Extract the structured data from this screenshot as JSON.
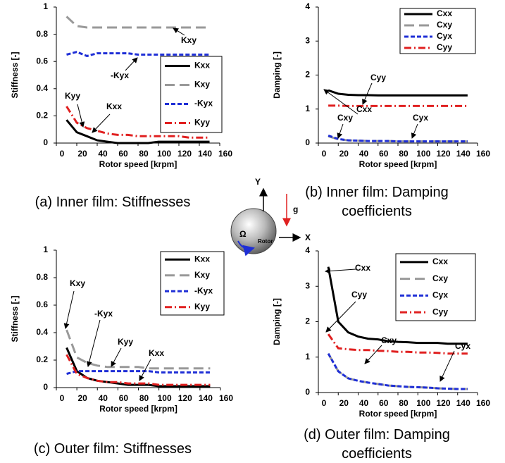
{
  "chart_data": [
    {
      "type": "line",
      "caption": "(a) Inner film: Stiffnesses",
      "xlabel": "Rotor speed [krpm]",
      "ylabel": "Stiffness [-]",
      "x": [
        10,
        20,
        30,
        40,
        50,
        60,
        70,
        80,
        90,
        100,
        110,
        120,
        130,
        140,
        150
      ],
      "xlim": [
        0,
        160
      ],
      "xticks": [
        0,
        20,
        40,
        60,
        80,
        100,
        120,
        140,
        160
      ],
      "ylim": [
        0,
        1
      ],
      "yticks": [
        0,
        0.2,
        0.4,
        0.6,
        0.8,
        1
      ],
      "legend": "upper right",
      "series": [
        {
          "name": "Kxx",
          "color": "#000000",
          "linestyle": "solid",
          "values": [
            0.17,
            0.08,
            0.05,
            0.02,
            0.01,
            0,
            0,
            0,
            0,
            0.01,
            0.01,
            0.01,
            0.01,
            0.01,
            0.01
          ]
        },
        {
          "name": "Kxy",
          "color": "#999999",
          "linestyle": "dashed",
          "values": [
            0.93,
            0.86,
            0.85,
            0.85,
            0.85,
            0.85,
            0.85,
            0.85,
            0.85,
            0.85,
            0.85,
            0.85,
            0.85,
            0.85,
            0.85
          ]
        },
        {
          "name": "-Kyx",
          "color": "#1f2fd6",
          "linestyle": "dotted",
          "values": [
            0.65,
            0.67,
            0.64,
            0.66,
            0.66,
            0.66,
            0.66,
            0.65,
            0.65,
            0.65,
            0.65,
            0.65,
            0.65,
            0.65,
            0.65
          ]
        },
        {
          "name": "Kyy",
          "color": "#e02020",
          "linestyle": "dashdot",
          "values": [
            0.27,
            0.15,
            0.11,
            0.09,
            0.07,
            0.06,
            0.06,
            0.05,
            0.05,
            0.05,
            0.05,
            0.05,
            0.04,
            0.04,
            0.04
          ]
        }
      ],
      "annotations": [
        "Kxy",
        "-Kyx",
        "Kyy",
        "Kxx"
      ]
    },
    {
      "type": "line",
      "caption": "(b) Inner film: Damping coefficients",
      "xlabel": "Rotor speed [krpm]",
      "ylabel": "Damping [-]",
      "x": [
        10,
        20,
        30,
        40,
        50,
        60,
        70,
        80,
        90,
        100,
        110,
        120,
        130,
        140,
        150
      ],
      "xlim": [
        0,
        160
      ],
      "xticks": [
        0,
        20,
        40,
        60,
        80,
        100,
        120,
        140,
        160
      ],
      "ylim": [
        0,
        4
      ],
      "yticks": [
        0,
        1,
        2,
        3,
        4
      ],
      "legend": "upper right",
      "series": [
        {
          "name": "Cxx",
          "color": "#000000",
          "linestyle": "solid",
          "values": [
            1.55,
            1.45,
            1.42,
            1.41,
            1.41,
            1.4,
            1.4,
            1.4,
            1.4,
            1.4,
            1.4,
            1.4,
            1.4,
            1.4,
            1.4
          ]
        },
        {
          "name": "Cxy",
          "color": "#999999",
          "linestyle": "dashed",
          "values": [
            0.2,
            0.11,
            0.08,
            0.07,
            0.06,
            0.06,
            0.06,
            0.05,
            0.05,
            0.05,
            0.05,
            0.05,
            0.05,
            0.05,
            0.05
          ]
        },
        {
          "name": "Cyx",
          "color": "#1f2fd6",
          "linestyle": "dotted",
          "values": [
            0.22,
            0.12,
            0.08,
            0.07,
            0.06,
            0.06,
            0.06,
            0.05,
            0.05,
            0.05,
            0.05,
            0.05,
            0.05,
            0.05,
            0.05
          ]
        },
        {
          "name": "Cyy",
          "color": "#e02020",
          "linestyle": "dashdot",
          "values": [
            1.1,
            1.1,
            1.09,
            1.09,
            1.09,
            1.09,
            1.09,
            1.09,
            1.09,
            1.09,
            1.09,
            1.09,
            1.09,
            1.09,
            1.09
          ]
        }
      ],
      "annotations": [
        "Cxx",
        "Cyy",
        "Cxy",
        "Cyx"
      ]
    },
    {
      "type": "line",
      "caption": "(c) Outer film: Stiffnesses",
      "xlabel": "Rotor speed [krpm]",
      "ylabel": "Stiffness [-]",
      "x": [
        10,
        20,
        30,
        40,
        50,
        60,
        70,
        80,
        90,
        100,
        110,
        120,
        130,
        140,
        150
      ],
      "xlim": [
        0,
        160
      ],
      "xticks": [
        0,
        20,
        40,
        60,
        80,
        100,
        120,
        140,
        160
      ],
      "ylim": [
        0,
        1
      ],
      "yticks": [
        0,
        0.2,
        0.4,
        0.6,
        0.8,
        1
      ],
      "legend": "upper right",
      "series": [
        {
          "name": "Kxx",
          "color": "#000000",
          "linestyle": "solid",
          "values": [
            0.29,
            0.12,
            0.07,
            0.05,
            0.04,
            0.03,
            0.02,
            0.02,
            0.02,
            0.01,
            0.01,
            0.01,
            0.01,
            0.01,
            0.01
          ]
        },
        {
          "name": "Kxy",
          "color": "#999999",
          "linestyle": "dashed",
          "values": [
            0.42,
            0.22,
            0.18,
            0.16,
            0.15,
            0.15,
            0.15,
            0.15,
            0.14,
            0.14,
            0.14,
            0.14,
            0.14,
            0.14,
            0.14
          ]
        },
        {
          "name": "-Kyx",
          "color": "#1f2fd6",
          "linestyle": "dotted",
          "values": [
            0.1,
            0.12,
            0.12,
            0.12,
            0.12,
            0.12,
            0.12,
            0.12,
            0.12,
            0.11,
            0.11,
            0.11,
            0.11,
            0.11,
            0.11
          ]
        },
        {
          "name": "Kyy",
          "color": "#e02020",
          "linestyle": "dashdot",
          "values": [
            0.24,
            0.1,
            0.07,
            0.05,
            0.04,
            0.04,
            0.03,
            0.03,
            0.03,
            0.02,
            0.02,
            0.02,
            0.02,
            0.02,
            0.02
          ]
        }
      ],
      "annotations": [
        "Kxy",
        "-Kyx",
        "Kyy",
        "Kxx"
      ]
    },
    {
      "type": "line",
      "caption": "(d) Outer film: Damping coefficients",
      "xlabel": "Rotor speed [krpm]",
      "ylabel": "Damping [-]",
      "x": [
        10,
        20,
        30,
        40,
        50,
        60,
        70,
        80,
        90,
        100,
        110,
        120,
        130,
        140,
        150
      ],
      "xlim": [
        0,
        160
      ],
      "xticks": [
        0,
        20,
        40,
        60,
        80,
        100,
        120,
        140,
        160
      ],
      "ylim": [
        0,
        4
      ],
      "yticks": [
        0,
        1,
        2,
        3,
        4
      ],
      "legend": "upper right",
      "series": [
        {
          "name": "Cxx",
          "color": "#000000",
          "linestyle": "solid",
          "values": [
            3.55,
            2.0,
            1.7,
            1.58,
            1.52,
            1.5,
            1.45,
            1.43,
            1.42,
            1.4,
            1.4,
            1.4,
            1.38,
            1.38,
            1.38
          ]
        },
        {
          "name": "Cxy",
          "color": "#999999",
          "linestyle": "dashed",
          "values": [
            1.1,
            0.6,
            0.4,
            0.33,
            0.28,
            0.24,
            0.2,
            0.18,
            0.16,
            0.15,
            0.14,
            0.12,
            0.11,
            0.1,
            0.1
          ]
        },
        {
          "name": "Cyx",
          "color": "#1f2fd6",
          "linestyle": "dotted",
          "values": [
            1.1,
            0.6,
            0.4,
            0.33,
            0.28,
            0.24,
            0.2,
            0.18,
            0.16,
            0.15,
            0.14,
            0.12,
            0.11,
            0.1,
            0.1
          ]
        },
        {
          "name": "Cyy",
          "color": "#e02020",
          "linestyle": "dashdot",
          "values": [
            1.65,
            1.25,
            1.22,
            1.2,
            1.2,
            1.18,
            1.17,
            1.15,
            1.15,
            1.13,
            1.13,
            1.12,
            1.1,
            1.1,
            1.1
          ]
        }
      ],
      "annotations": [
        "Cxx",
        "Cyy",
        "Cxy",
        "Cyx"
      ]
    }
  ],
  "diagram": {
    "y_axis": "Y",
    "x_axis": "X",
    "gravity": "g",
    "rotation": "Ω",
    "rotor": "Rotor"
  }
}
